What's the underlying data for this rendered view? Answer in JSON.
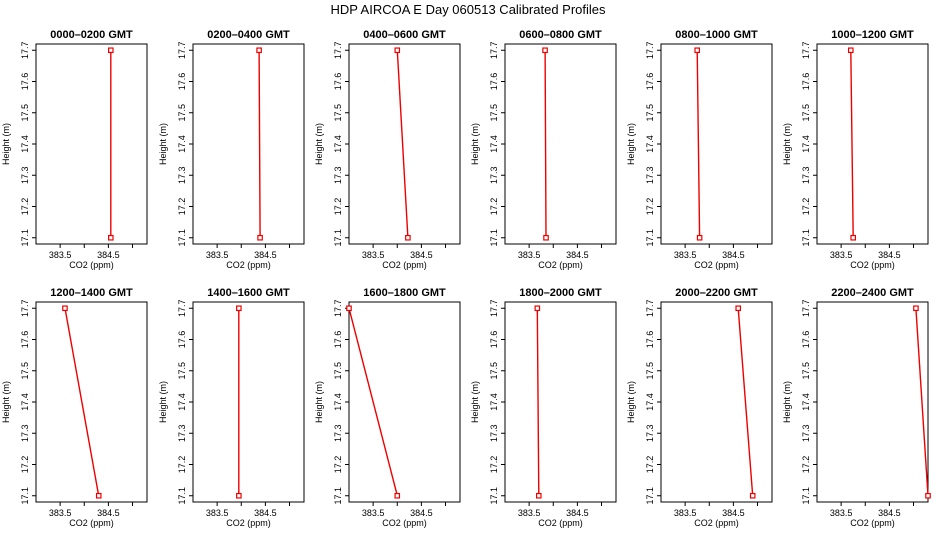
{
  "title": "HDP  AIRCOA E  Day 060513  Calibrated Profiles",
  "colors": {
    "line": "#ee0000",
    "marker": "#ee0000",
    "frame": "#000000"
  },
  "chart_data": {
    "type": "line",
    "xlabel": "CO2 (ppm)",
    "ylabel": "Height (m)",
    "xlim": [
      383.0,
      385.3
    ],
    "ylim": [
      17.08,
      17.72
    ],
    "xticks": [
      383.5,
      384.0,
      384.5,
      385.0
    ],
    "xtick_labels": [
      "383.5",
      "",
      "384.5",
      ""
    ],
    "yticks": [
      17.1,
      17.2,
      17.3,
      17.4,
      17.5,
      17.6,
      17.7
    ],
    "ytick_labels": [
      "17.1",
      "17.2",
      "17.3",
      "17.4",
      "17.5",
      "17.6",
      "17.7"
    ],
    "panels": [
      {
        "title": "0000–0200 GMT",
        "points": [
          {
            "x": 384.55,
            "y": 17.1
          },
          {
            "x": 384.55,
            "y": 17.7
          }
        ]
      },
      {
        "title": "0200–0400 GMT",
        "points": [
          {
            "x": 384.39,
            "y": 17.1
          },
          {
            "x": 384.37,
            "y": 17.7
          }
        ]
      },
      {
        "title": "0400–0600 GMT",
        "points": [
          {
            "x": 384.22,
            "y": 17.1
          },
          {
            "x": 384.0,
            "y": 17.7
          }
        ]
      },
      {
        "title": "0600–0800 GMT",
        "points": [
          {
            "x": 383.85,
            "y": 17.1
          },
          {
            "x": 383.83,
            "y": 17.7
          }
        ]
      },
      {
        "title": "0800–1000 GMT",
        "points": [
          {
            "x": 383.8,
            "y": 17.1
          },
          {
            "x": 383.75,
            "y": 17.7
          }
        ]
      },
      {
        "title": "1000–1200 GMT",
        "points": [
          {
            "x": 383.75,
            "y": 17.1
          },
          {
            "x": 383.7,
            "y": 17.7
          }
        ]
      },
      {
        "title": "1200–1400 GMT",
        "points": [
          {
            "x": 384.3,
            "y": 17.1
          },
          {
            "x": 383.6,
            "y": 17.7
          }
        ]
      },
      {
        "title": "1400–1600 GMT",
        "points": [
          {
            "x": 383.95,
            "y": 17.1
          },
          {
            "x": 383.95,
            "y": 17.7
          }
        ]
      },
      {
        "title": "1600–1800 GMT",
        "points": [
          {
            "x": 384.0,
            "y": 17.1
          },
          {
            "x": 383.0,
            "y": 17.7
          }
        ]
      },
      {
        "title": "1800–2000 GMT",
        "points": [
          {
            "x": 383.7,
            "y": 17.1
          },
          {
            "x": 383.67,
            "y": 17.7
          }
        ]
      },
      {
        "title": "2000–2200 GMT",
        "points": [
          {
            "x": 384.9,
            "y": 17.1
          },
          {
            "x": 384.6,
            "y": 17.7
          }
        ]
      },
      {
        "title": "2200–2400 GMT",
        "points": [
          {
            "x": 385.3,
            "y": 17.1
          },
          {
            "x": 385.05,
            "y": 17.7
          }
        ]
      }
    ]
  }
}
